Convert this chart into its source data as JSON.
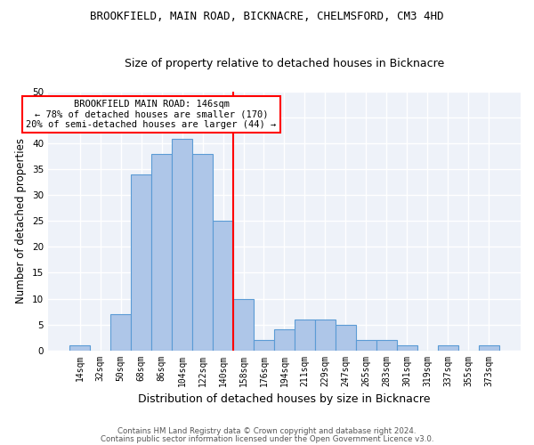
{
  "title": "BROOKFIELD, MAIN ROAD, BICKNACRE, CHELMSFORD, CM3 4HD",
  "subtitle": "Size of property relative to detached houses in Bicknacre",
  "xlabel": "Distribution of detached houses by size in Bicknacre",
  "ylabel": "Number of detached properties",
  "categories": [
    "14sqm",
    "32sqm",
    "50sqm",
    "68sqm",
    "86sqm",
    "104sqm",
    "122sqm",
    "140sqm",
    "158sqm",
    "176sqm",
    "194sqm",
    "211sqm",
    "229sqm",
    "247sqm",
    "265sqm",
    "283sqm",
    "301sqm",
    "319sqm",
    "337sqm",
    "355sqm",
    "373sqm"
  ],
  "values": [
    1,
    0,
    7,
    34,
    38,
    41,
    38,
    25,
    10,
    2,
    4,
    6,
    6,
    5,
    2,
    2,
    1,
    0,
    1,
    0,
    1
  ],
  "bar_color": "#aec6e8",
  "bar_edge_color": "#5b9bd5",
  "vline_color": "red",
  "annotation_title": "BROOKFIELD MAIN ROAD: 146sqm",
  "annotation_line1": "← 78% of detached houses are smaller (170)",
  "annotation_line2": "20% of semi-detached houses are larger (44) →",
  "annotation_box_color": "white",
  "annotation_box_edge": "red",
  "ylim": [
    0,
    50
  ],
  "yticks": [
    0,
    5,
    10,
    15,
    20,
    25,
    30,
    35,
    40,
    45,
    50
  ],
  "footer1": "Contains HM Land Registry data © Crown copyright and database right 2024.",
  "footer2": "Contains public sector information licensed under the Open Government Licence v3.0.",
  "bg_color": "#eef2f9",
  "grid_color": "white",
  "title_fontsize": 9,
  "subtitle_fontsize": 9,
  "tick_fontsize": 7,
  "ylabel_fontsize": 8.5,
  "xlabel_fontsize": 9
}
